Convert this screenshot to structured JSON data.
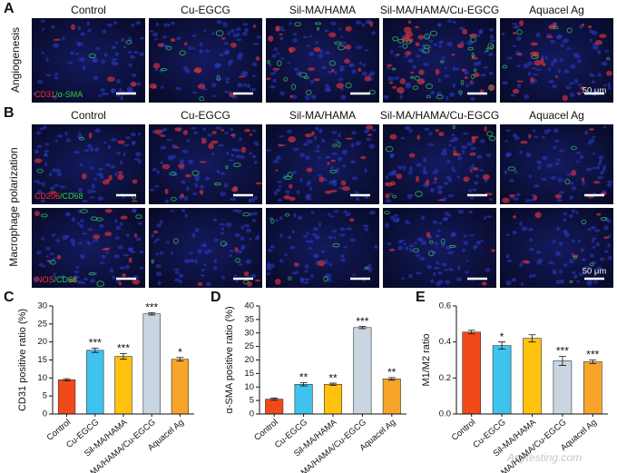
{
  "panel_a": {
    "letter": "A",
    "row_label": "Angiogenesis",
    "columns": [
      "Control",
      "Cu-EGCG",
      "Sil-MA/HAMA",
      "Sil-MA/HAMA/Cu-EGCG",
      "Aquacel Ag"
    ],
    "stain": [
      "CD31",
      "/α-SMA"
    ],
    "scale_bar": "50 μm"
  },
  "panel_b": {
    "letter": "B",
    "row_label": "Macrophage polarization",
    "columns": [
      "Control",
      "Cu-EGCG",
      "Sil-MA/HAMA",
      "Sil-MA/HAMA/Cu-EGCG",
      "Aquacel Ag"
    ],
    "rows": [
      {
        "stain": [
          "CD206",
          "/CD68"
        ]
      },
      {
        "stain": [
          "iNOS",
          "/CD68"
        ]
      }
    ],
    "scale_bar": "50 μm"
  },
  "watermark": "Anytesting.com",
  "chart_data": [
    {
      "letter": "C",
      "type": "bar",
      "ylabel": "CD31 positive ratio (%)",
      "categories": [
        "Control",
        "Cu-EGCG",
        "Sil-MA/HAMA",
        "Sil-MA/HAMA/Cu-EGCG",
        "Aquacel Ag"
      ],
      "values": [
        9.5,
        17.7,
        16.0,
        27.8,
        15.2
      ],
      "errors": [
        0.3,
        0.6,
        0.8,
        0.3,
        0.5
      ],
      "significance": [
        null,
        "***",
        "***",
        "***",
        "*"
      ],
      "colors": [
        "#f04a1a",
        "#3ec3ef",
        "#ffc20e",
        "#c9d5e1",
        "#f7a52a"
      ],
      "ylim": [
        0,
        30
      ],
      "yticks": [
        0,
        5,
        10,
        15,
        20,
        25,
        30
      ]
    },
    {
      "letter": "D",
      "type": "bar",
      "ylabel": "α-SMA positive ratio (%)",
      "categories": [
        "Control",
        "Cu-EGCG",
        "Sil-MA/HAMA",
        "Sil-MA/HAMA/Cu-EGCG",
        "Aquacel Ag"
      ],
      "values": [
        5.5,
        11.0,
        11.0,
        32.0,
        13.0
      ],
      "errors": [
        0.4,
        0.6,
        0.4,
        0.4,
        0.5
      ],
      "significance": [
        null,
        "**",
        "**",
        "***",
        "**"
      ],
      "colors": [
        "#f04a1a",
        "#3ec3ef",
        "#ffc20e",
        "#c9d5e1",
        "#f7a52a"
      ],
      "ylim": [
        0,
        40
      ],
      "yticks": [
        0,
        5,
        10,
        15,
        20,
        25,
        30,
        35,
        40
      ]
    },
    {
      "letter": "E",
      "type": "bar",
      "ylabel": "M1/M2 ratio",
      "categories": [
        "Control",
        "Cu-EGCG",
        "Sil-MA/HAMA",
        "Sil-MA/HAMA/Cu-EGCG",
        "Aquacel Ag"
      ],
      "values": [
        0.455,
        0.38,
        0.42,
        0.295,
        0.29
      ],
      "errors": [
        0.01,
        0.02,
        0.02,
        0.025,
        0.01
      ],
      "significance": [
        null,
        "*",
        null,
        "***",
        "***"
      ],
      "colors": [
        "#f04a1a",
        "#3ec3ef",
        "#ffc20e",
        "#c9d5e1",
        "#f7a52a"
      ],
      "ylim": [
        0,
        0.6
      ],
      "yticks": [
        {
          "value": 0,
          "label": "0.0"
        },
        0.2,
        0.4,
        0.6
      ]
    }
  ]
}
